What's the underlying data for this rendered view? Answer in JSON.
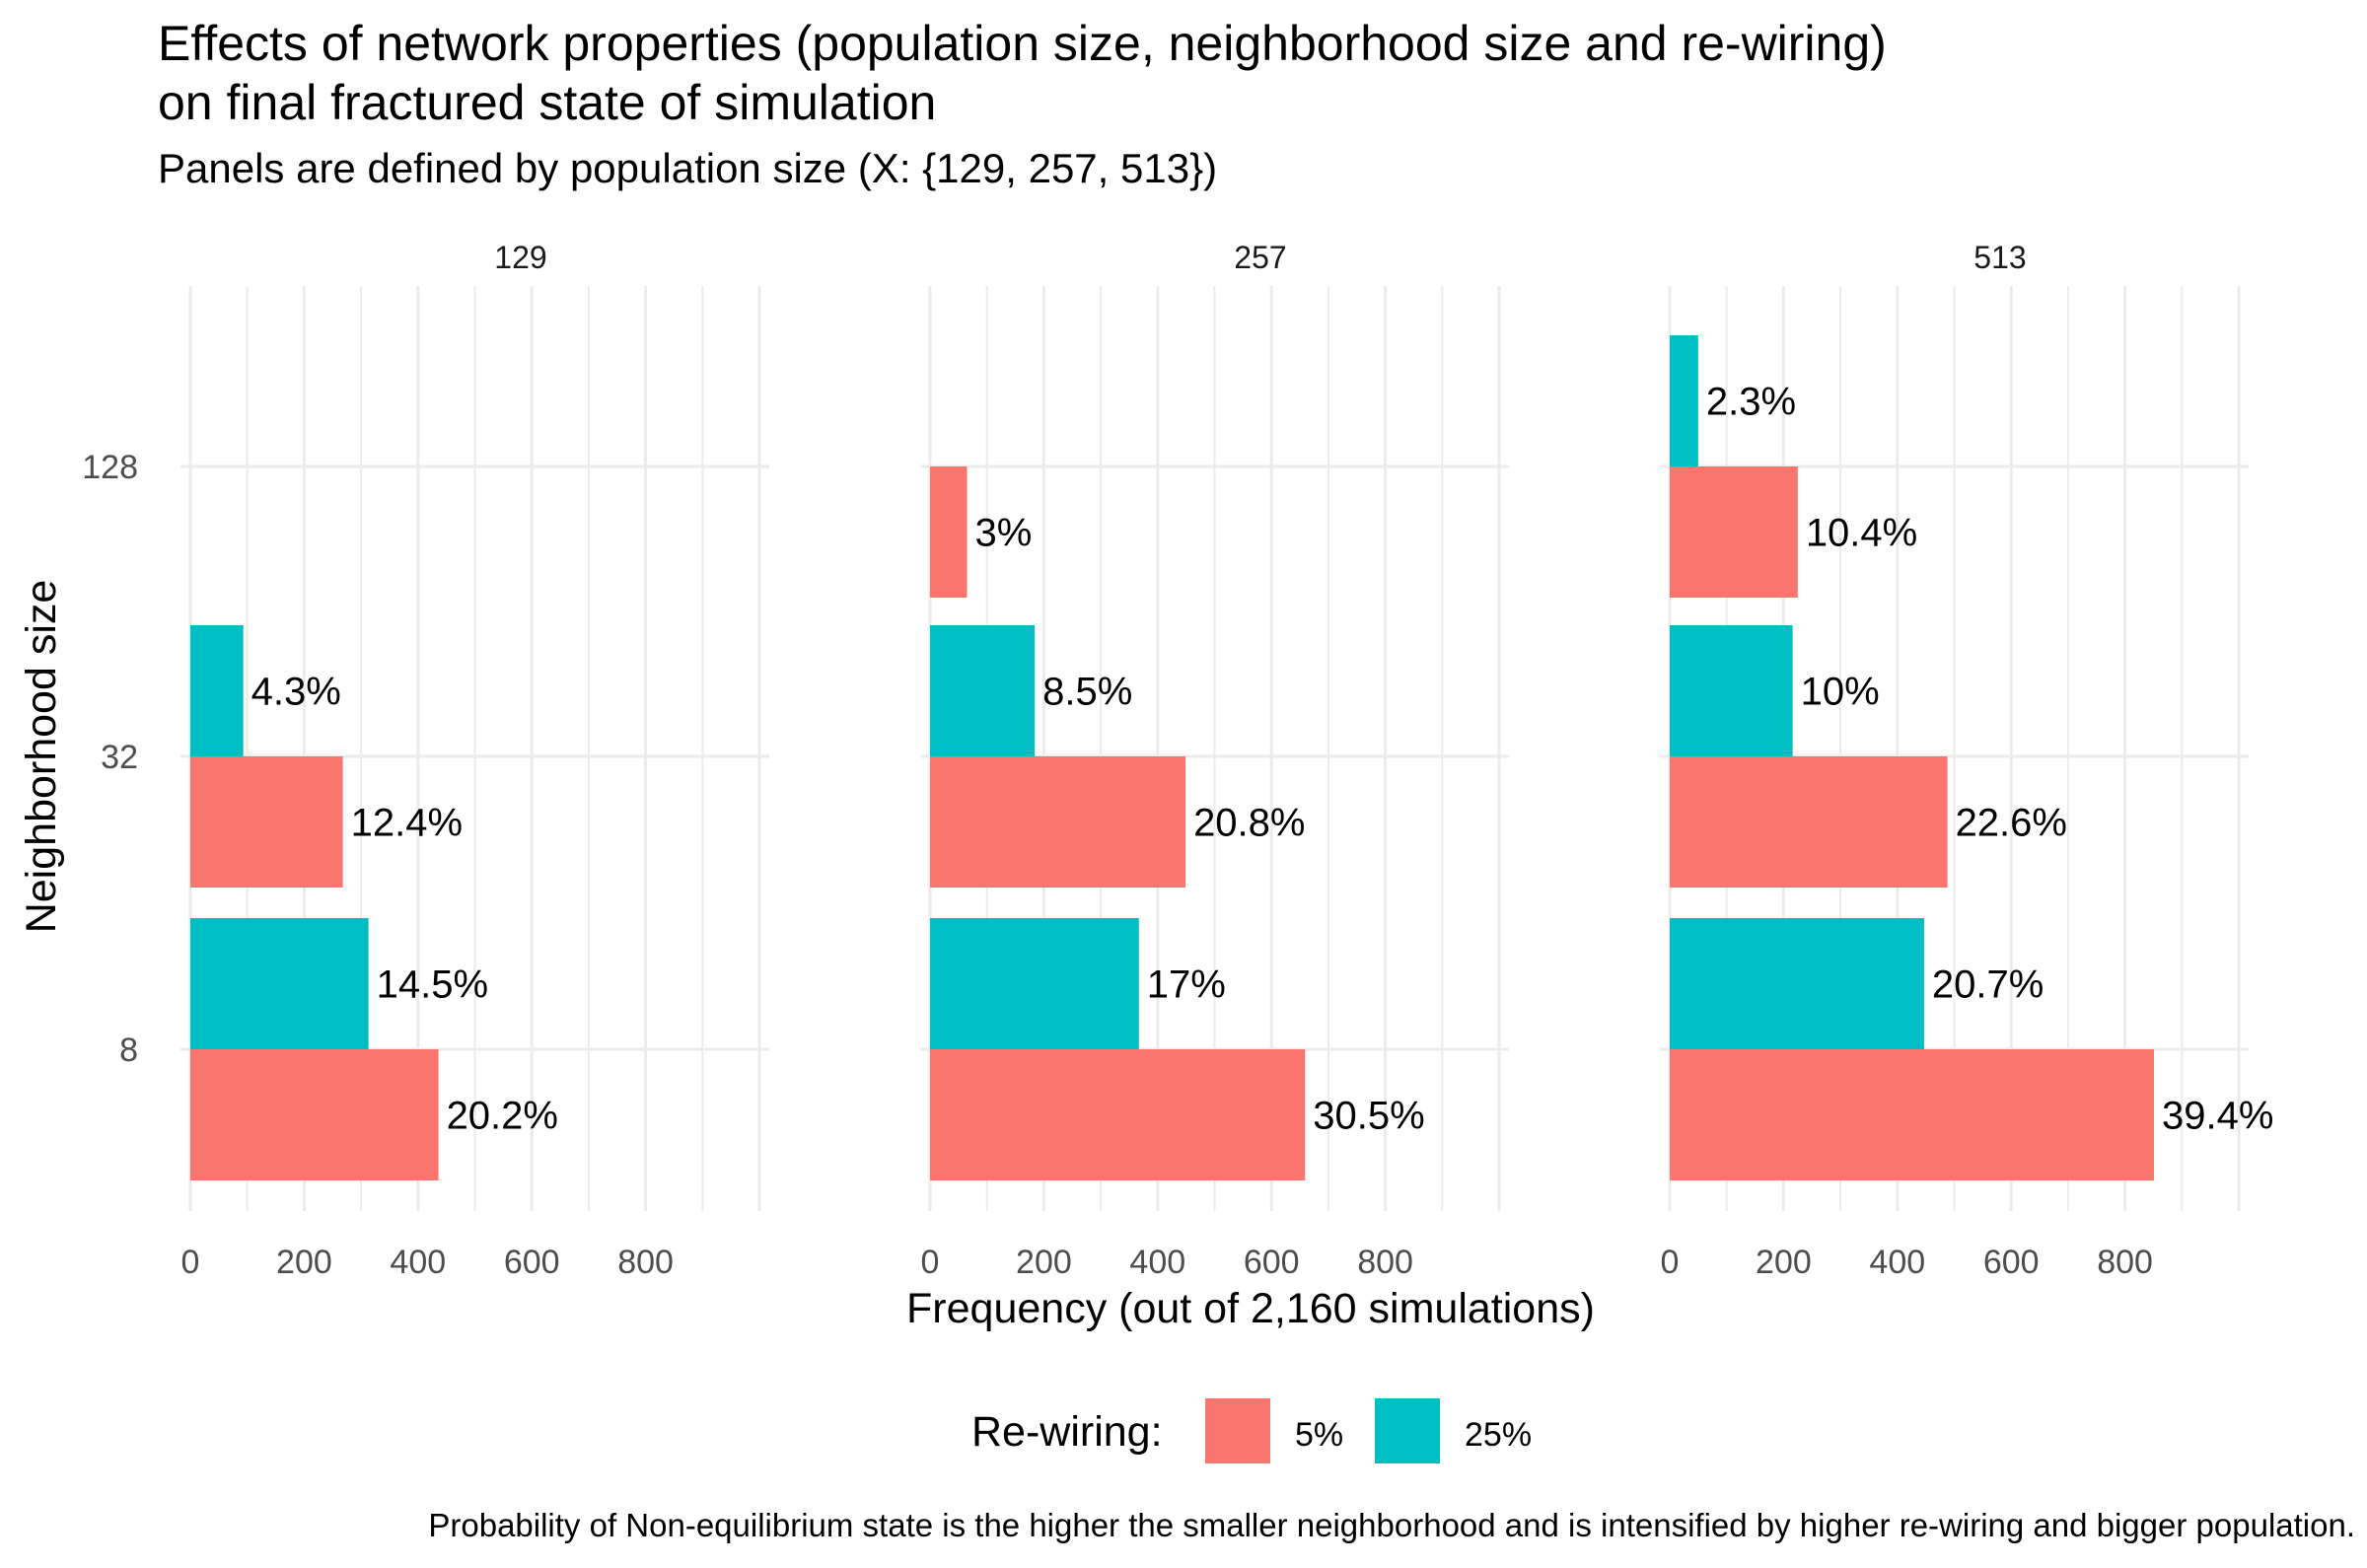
{
  "chart_data": {
    "type": "bar",
    "orientation": "horizontal",
    "title_lines": [
      "Effects of network properties (population size, neighborhood size and re-wiring)",
      "on final fractured state of simulation"
    ],
    "subtitle": "Panels are defined by population size (X: {129, 257, 513})",
    "caption": "Probability of Non-equilibrium state is the higher the smaller neighborhood and is intensified by higher re-wiring and bigger population.",
    "xlabel": "Frequency (out of 2,160 simulations)",
    "ylabel": "Neighborhood size",
    "xlim": [
      0,
      1000
    ],
    "x_ticks": [
      "0",
      "200",
      "400",
      "600",
      "800"
    ],
    "x_tick_values": [
      0,
      200,
      400,
      600,
      800
    ],
    "categories": [
      "8",
      "32",
      "128"
    ],
    "legend": {
      "title": "Re-wiring:",
      "placement": "bottom",
      "entries": [
        {
          "label": "5%",
          "color": "#F8766D"
        },
        {
          "label": "25%",
          "color": "#00BFC4"
        }
      ]
    },
    "grid": true,
    "panels": [
      {
        "label": "129",
        "series": [
          {
            "name": "5%",
            "values": [
              436,
              268,
              null
            ],
            "labels": [
              "20.2%",
              "12.4%",
              ""
            ]
          },
          {
            "name": "25%",
            "values": [
              313,
              93,
              null
            ],
            "labels": [
              "14.5%",
              "4.3%",
              ""
            ]
          }
        ]
      },
      {
        "label": "257",
        "series": [
          {
            "name": "5%",
            "values": [
              659,
              449,
              65
            ],
            "labels": [
              "30.5%",
              "20.8%",
              "3%"
            ]
          },
          {
            "name": "25%",
            "values": [
              367,
              184,
              null
            ],
            "labels": [
              "17%",
              "8.5%",
              ""
            ]
          }
        ]
      },
      {
        "label": "513",
        "series": [
          {
            "name": "5%",
            "values": [
              851,
              488,
              225
            ],
            "labels": [
              "39.4%",
              "22.6%",
              "10.4%"
            ]
          },
          {
            "name": "25%",
            "values": [
              447,
              216,
              50
            ],
            "labels": [
              "20.7%",
              "10%",
              "2.3%"
            ]
          }
        ]
      }
    ]
  }
}
